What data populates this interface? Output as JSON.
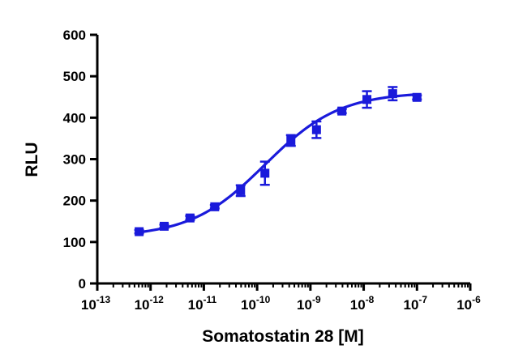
{
  "chart_data": {
    "type": "scatter",
    "title": "",
    "xlabel": "Somatostatin 28 [M]",
    "ylabel": "RLU",
    "xscale": "log",
    "xlim": [
      1e-13,
      1e-06
    ],
    "ylim": [
      0,
      600
    ],
    "x_ticks": [
      {
        "value": 1e-13,
        "base": "10",
        "exp": "-13"
      },
      {
        "value": 1e-12,
        "base": "10",
        "exp": "-12"
      },
      {
        "value": 1e-11,
        "base": "10",
        "exp": "-11"
      },
      {
        "value": 1e-10,
        "base": "10",
        "exp": "-10"
      },
      {
        "value": 1e-09,
        "base": "10",
        "exp": "-9"
      },
      {
        "value": 1e-08,
        "base": "10",
        "exp": "-8"
      },
      {
        "value": 1e-07,
        "base": "10",
        "exp": "-7"
      },
      {
        "value": 1e-06,
        "base": "10",
        "exp": "-6"
      }
    ],
    "y_ticks": [
      {
        "value": 0,
        "label": "0"
      },
      {
        "value": 100,
        "label": "100"
      },
      {
        "value": 200,
        "label": "200"
      },
      {
        "value": 300,
        "label": "300"
      },
      {
        "value": 400,
        "label": "400"
      },
      {
        "value": 500,
        "label": "500"
      },
      {
        "value": 600,
        "label": "600"
      }
    ],
    "grid": false,
    "legend": "none",
    "color": "#1a1adb",
    "points": [
      {
        "x": 6.1e-13,
        "y": 125,
        "err": 4
      },
      {
        "x": 1.8e-12,
        "y": 138,
        "err": 4
      },
      {
        "x": 5.5e-12,
        "y": 158,
        "err": 5
      },
      {
        "x": 1.6e-11,
        "y": 185,
        "err": 4
      },
      {
        "x": 4.9e-11,
        "y": 224,
        "err": 13
      },
      {
        "x": 1.4e-10,
        "y": 266,
        "err": 28
      },
      {
        "x": 4.3e-10,
        "y": 345,
        "err": 13
      },
      {
        "x": 1.3e-09,
        "y": 371,
        "err": 20
      },
      {
        "x": 3.9e-09,
        "y": 416,
        "err": 5
      },
      {
        "x": 1.15e-08,
        "y": 444,
        "err": 20
      },
      {
        "x": 3.5e-08,
        "y": 458,
        "err": 16
      },
      {
        "x": 1e-07,
        "y": 449,
        "err": 5
      }
    ],
    "fit": {
      "bottom": 112,
      "top": 462,
      "log_ec50": -9.85,
      "hill_slope": 0.62
    }
  }
}
